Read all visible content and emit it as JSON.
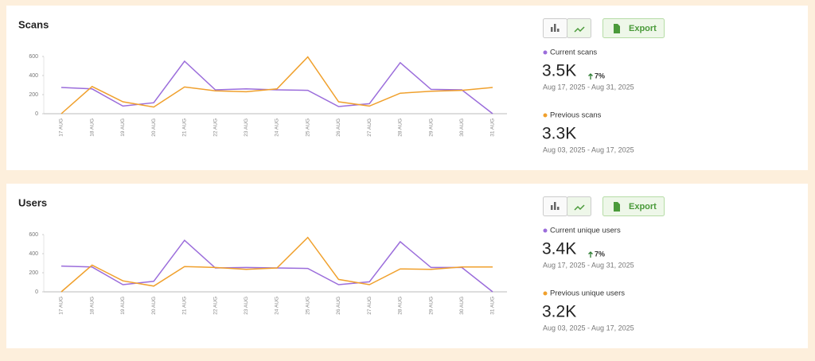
{
  "chart_data": [
    {
      "type": "line",
      "title": "Scans",
      "export_label": "Export",
      "categories": [
        "17 AUG",
        "18 AUG",
        "19 AUG",
        "20 AUG",
        "21 AUG",
        "22 AUG",
        "23 AUG",
        "24 AUG",
        "25 AUG",
        "26 AUG",
        "27 AUG",
        "28 AUG",
        "29 AUG",
        "30 AUG",
        "31 AUG"
      ],
      "series": [
        {
          "name": "Current scans",
          "color": "#9b6ddb",
          "values": [
            275,
            260,
            80,
            115,
            550,
            250,
            260,
            250,
            245,
            75,
            105,
            535,
            255,
            250,
            0
          ]
        },
        {
          "name": "Previous scans",
          "color": "#f0a02c",
          "values": [
            0,
            285,
            125,
            70,
            280,
            240,
            230,
            260,
            595,
            125,
            80,
            215,
            235,
            245,
            275
          ]
        }
      ],
      "ylim": [
        0,
        600
      ],
      "yticks": [
        0,
        200,
        400,
        600
      ],
      "stats": {
        "current_value": "3.5K",
        "change": "7%",
        "current_range": "Aug 17, 2025 - Aug 31, 2025",
        "previous_value": "3.3K",
        "previous_range": "Aug 03, 2025 - Aug 17, 2025"
      }
    },
    {
      "type": "line",
      "title": "Users",
      "export_label": "Export",
      "categories": [
        "17 AUG",
        "18 AUG",
        "19 AUG",
        "20 AUG",
        "21 AUG",
        "22 AUG",
        "23 AUG",
        "24 AUG",
        "25 AUG",
        "26 AUG",
        "27 AUG",
        "28 AUG",
        "29 AUG",
        "30 AUG",
        "31 AUG"
      ],
      "series": [
        {
          "name": "Current unique users",
          "color": "#9b6ddb",
          "values": [
            270,
            260,
            75,
            110,
            540,
            250,
            255,
            250,
            245,
            75,
            105,
            525,
            255,
            255,
            0
          ]
        },
        {
          "name": "Previous unique users",
          "color": "#f0a02c",
          "values": [
            0,
            280,
            115,
            60,
            265,
            255,
            235,
            250,
            570,
            130,
            75,
            240,
            235,
            260,
            260
          ]
        }
      ],
      "ylim": [
        0,
        600
      ],
      "yticks": [
        0,
        200,
        400,
        600
      ],
      "stats": {
        "current_value": "3.4K",
        "change": "7%",
        "current_range": "Aug 17, 2025 - Aug 31, 2025",
        "previous_value": "3.2K",
        "previous_range": "Aug 03, 2025 - Aug 17, 2025"
      }
    }
  ]
}
